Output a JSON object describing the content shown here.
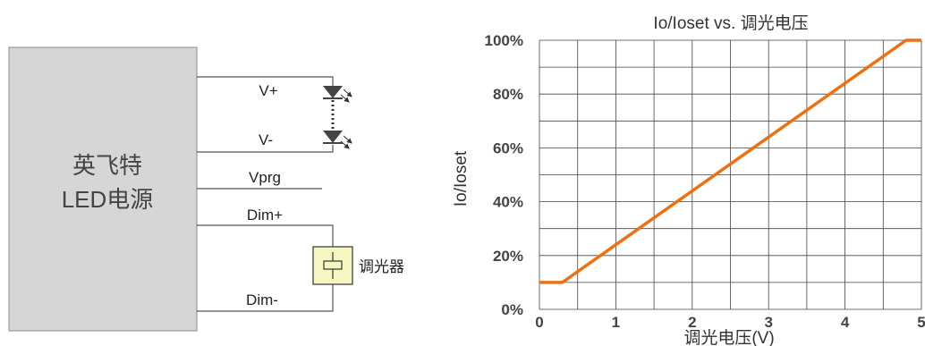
{
  "diagram": {
    "power_supply": {
      "line1": "英飞特",
      "line2": "LED电源"
    },
    "terminals": {
      "v_plus": "V+",
      "v_minus": "V-",
      "vprg": "Vprg",
      "dim_plus": "Dim+",
      "dim_minus": "Dim-"
    },
    "dimmer_label": "调光器"
  },
  "chart_data": {
    "type": "line",
    "title": "Io/Ioset vs. 调光电压",
    "xlabel": "调光电压(V)",
    "ylabel": "Io/Ioset",
    "xlim": [
      0,
      5
    ],
    "ylim": [
      0,
      100
    ],
    "x_ticks": [
      "0",
      "1",
      "2",
      "3",
      "4",
      "5"
    ],
    "y_ticks": [
      "0%",
      "20%",
      "40%",
      "60%",
      "80%",
      "100%"
    ],
    "grid": true,
    "series": [
      {
        "x": [
          0,
          0.3,
          4.8,
          5
        ],
        "y": [
          10,
          10,
          100,
          100
        ],
        "color": "#f07010"
      }
    ]
  }
}
